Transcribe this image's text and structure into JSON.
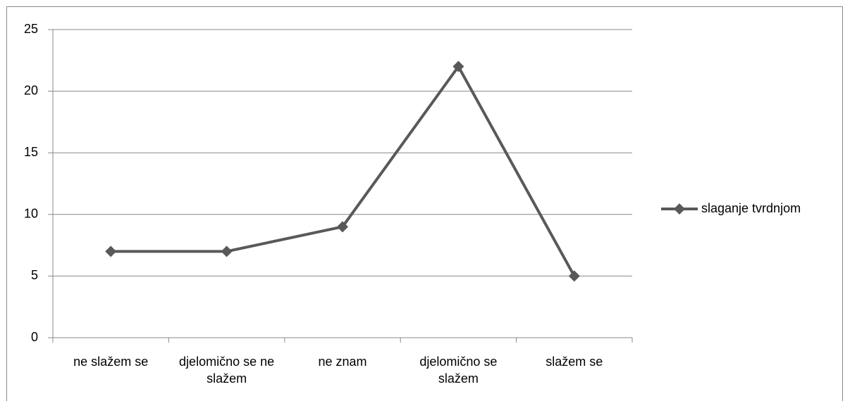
{
  "chart_data": {
    "type": "line",
    "categories": [
      "ne slažem se",
      "djelomično se ne slažem",
      "ne znam",
      "djelomično se slažem",
      "slažem se"
    ],
    "series": [
      {
        "name": "slaganje tvrdnjom",
        "color": "#595959",
        "values": [
          7,
          7,
          9,
          22,
          5
        ]
      }
    ],
    "ylim": [
      0,
      25
    ],
    "yticks": [
      0,
      5,
      10,
      15,
      20,
      25
    ],
    "grid": true,
    "legend": "right"
  }
}
